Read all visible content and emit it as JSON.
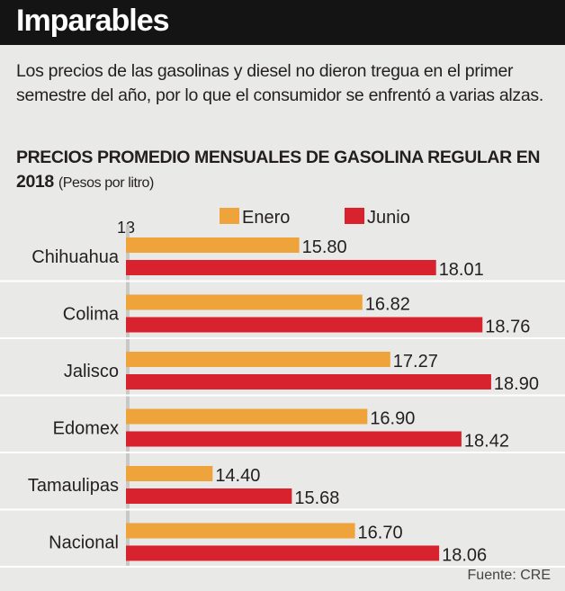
{
  "header": {
    "title": "Imparables"
  },
  "intro": "Los precios de las gasolinas y diesel no dieron tregua en el primer semestre del año, por lo que el consumidor se enfrentó a varias alzas.",
  "source": "Fuente: CRE",
  "chart_data": {
    "type": "bar",
    "orientation": "horizontal",
    "title": "PRECIOS PROMEDIO MENSUALES DE GASOLINA REGULAR EN 2018",
    "subtitle": "(Pesos por litro)",
    "axis_start_label": "13",
    "xlim": [
      13,
      19.2
    ],
    "categories": [
      "Chihuahua",
      "Colima",
      "Jalisco",
      "Edomex",
      "Tamaulipas",
      "Nacional"
    ],
    "series": [
      {
        "name": "Enero",
        "color": "#eea43a",
        "values": [
          15.8,
          16.82,
          17.27,
          16.9,
          14.4,
          16.7
        ]
      },
      {
        "name": "Junio",
        "color": "#d8222e",
        "values": [
          18.01,
          18.76,
          18.9,
          18.42,
          15.68,
          18.06
        ]
      }
    ],
    "legend": "top"
  }
}
